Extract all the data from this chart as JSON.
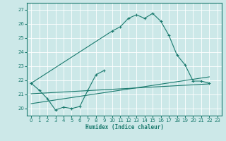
{
  "xlabel": "Humidex (Indice chaleur)",
  "xlim": [
    -0.5,
    23.5
  ],
  "ylim": [
    19.5,
    27.5
  ],
  "xticks": [
    0,
    1,
    2,
    3,
    4,
    5,
    6,
    7,
    8,
    9,
    10,
    11,
    12,
    13,
    14,
    15,
    16,
    17,
    18,
    19,
    20,
    21,
    22,
    23
  ],
  "yticks": [
    20,
    21,
    22,
    23,
    24,
    25,
    26,
    27
  ],
  "bg_color": "#cce8e8",
  "line_color": "#1a7a6e",
  "grid_color": "#ffffff",
  "curve1_x": [
    0,
    1,
    2,
    3,
    4,
    5,
    6,
    7,
    8,
    9
  ],
  "curve1_y": [
    21.8,
    21.3,
    20.7,
    19.9,
    20.1,
    20.0,
    20.15,
    21.3,
    22.4,
    22.7
  ],
  "curve2_x": [
    0,
    10,
    11,
    12,
    13,
    14,
    15,
    16,
    17,
    18,
    19,
    20,
    21,
    22
  ],
  "curve2_y": [
    21.8,
    25.5,
    25.8,
    26.4,
    26.65,
    26.4,
    26.75,
    26.2,
    25.2,
    23.8,
    23.1,
    21.95,
    21.95,
    21.8
  ],
  "trend1_x": [
    0,
    22
  ],
  "trend1_y": [
    21.05,
    21.75
  ],
  "trend2_x": [
    0,
    22
  ],
  "trend2_y": [
    20.35,
    22.25
  ]
}
